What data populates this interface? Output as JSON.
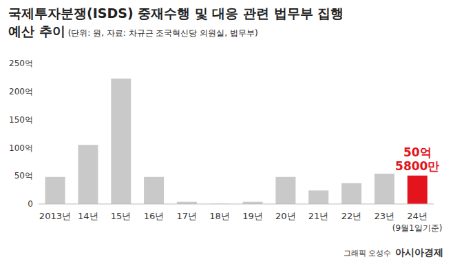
{
  "chart_data": {
    "type": "bar",
    "title": [
      "국제투자분쟁(ISDS) 중재수행 및 대응 관련 법무부 집행",
      "예산 추이"
    ],
    "subtitle": "(단위: 원, 자료: 차규근 조국혁신당 의원실, 법무부)",
    "categories": [
      "2013년",
      "14년",
      "15년",
      "16년",
      "17년",
      "18년",
      "19년",
      "20년",
      "21년",
      "22년",
      "23년",
      "24년"
    ],
    "values": [
      48,
      105,
      223,
      48,
      4,
      0.5,
      4,
      48,
      24,
      37,
      54,
      50.58
    ],
    "colors": [
      "#c9c9c9",
      "#c9c9c9",
      "#c9c9c9",
      "#c9c9c9",
      "#c9c9c9",
      "#c9c9c9",
      "#c9c9c9",
      "#c9c9c9",
      "#c9c9c9",
      "#c9c9c9",
      "#c9c9c9",
      "#e3141b"
    ],
    "ylim": [
      0,
      250
    ],
    "yticks": [
      0,
      {
        "value": 50,
        "label": "50억"
      },
      {
        "value": 100,
        "label": "100억"
      },
      {
        "value": 150,
        "label": "150억"
      },
      {
        "value": 200,
        "label": "200억"
      },
      {
        "value": 250,
        "label": "250억"
      }
    ],
    "grid": false,
    "annotations": [
      {
        "category": "24년",
        "value": 50.58,
        "text": [
          "50억",
          "5800만"
        ]
      },
      {
        "category": "24년",
        "text": [
          "(9월1일기준)"
        ]
      }
    ],
    "credit": "그래픽 오성수",
    "source_logo": "아시아경제"
  }
}
